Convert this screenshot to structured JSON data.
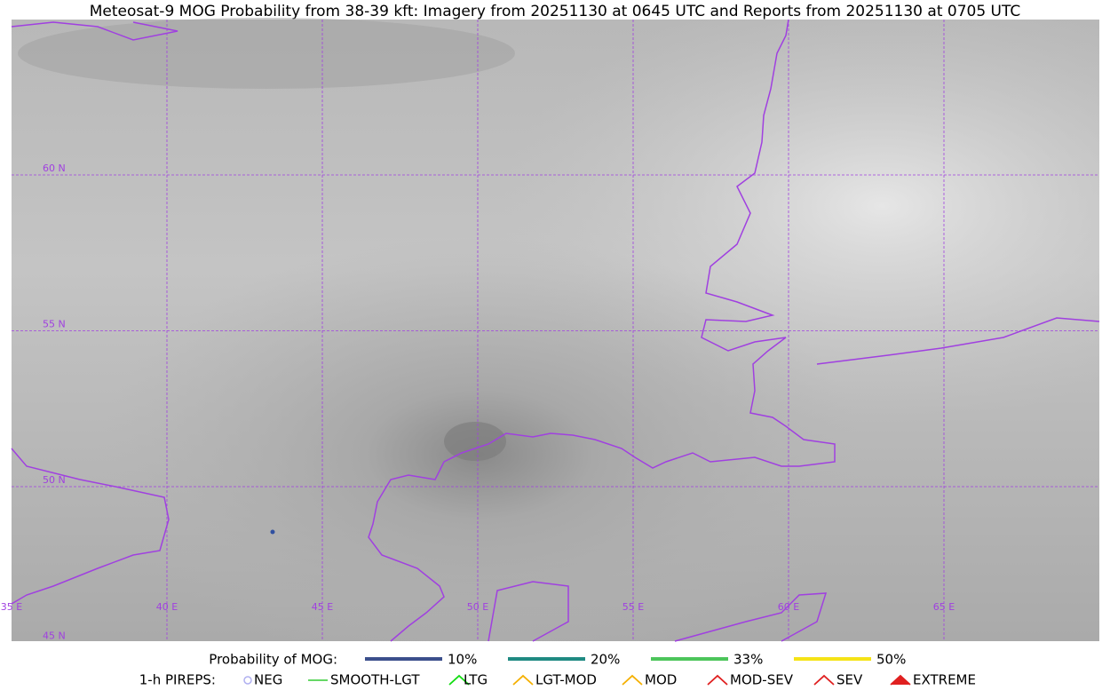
{
  "title": "Meteosat-9 MOG Probability from 38-39 kft: Imagery from 20251130 at 0645 UTC and Reports from 20251130 at 0705 UTC",
  "grid_labels": {
    "lat": [
      "60 N",
      "55 N",
      "50 N",
      "45 N"
    ],
    "lon": [
      "35 E",
      "40 E",
      "45 E",
      "50 E",
      "55 E",
      "60 E",
      "65 E"
    ]
  },
  "legend": {
    "probability_title": "Probability of MOG:",
    "probability_items": [
      {
        "label": "10%",
        "color": "#3b4f8c"
      },
      {
        "label": "20%",
        "color": "#1f8a82"
      },
      {
        "label": "33%",
        "color": "#4cc55a"
      },
      {
        "label": "50%",
        "color": "#f5e316"
      }
    ],
    "pireps_title": "1-h PIREPS:",
    "pireps_items": [
      {
        "label": "NEG",
        "color": "#b0b0f0"
      },
      {
        "label": "SMOOTH-LGT",
        "color": "#33cc33"
      },
      {
        "label": "LTG",
        "color": "#11dd11"
      },
      {
        "label": "LGT-MOD",
        "color": "#f5b000"
      },
      {
        "label": "MOD",
        "color": "#f5b000"
      },
      {
        "label": "MOD-SEV",
        "color": "#e02020"
      },
      {
        "label": "SEV",
        "color": "#e02020"
      },
      {
        "label": "EXTREME",
        "color": "#e02020"
      }
    ]
  }
}
